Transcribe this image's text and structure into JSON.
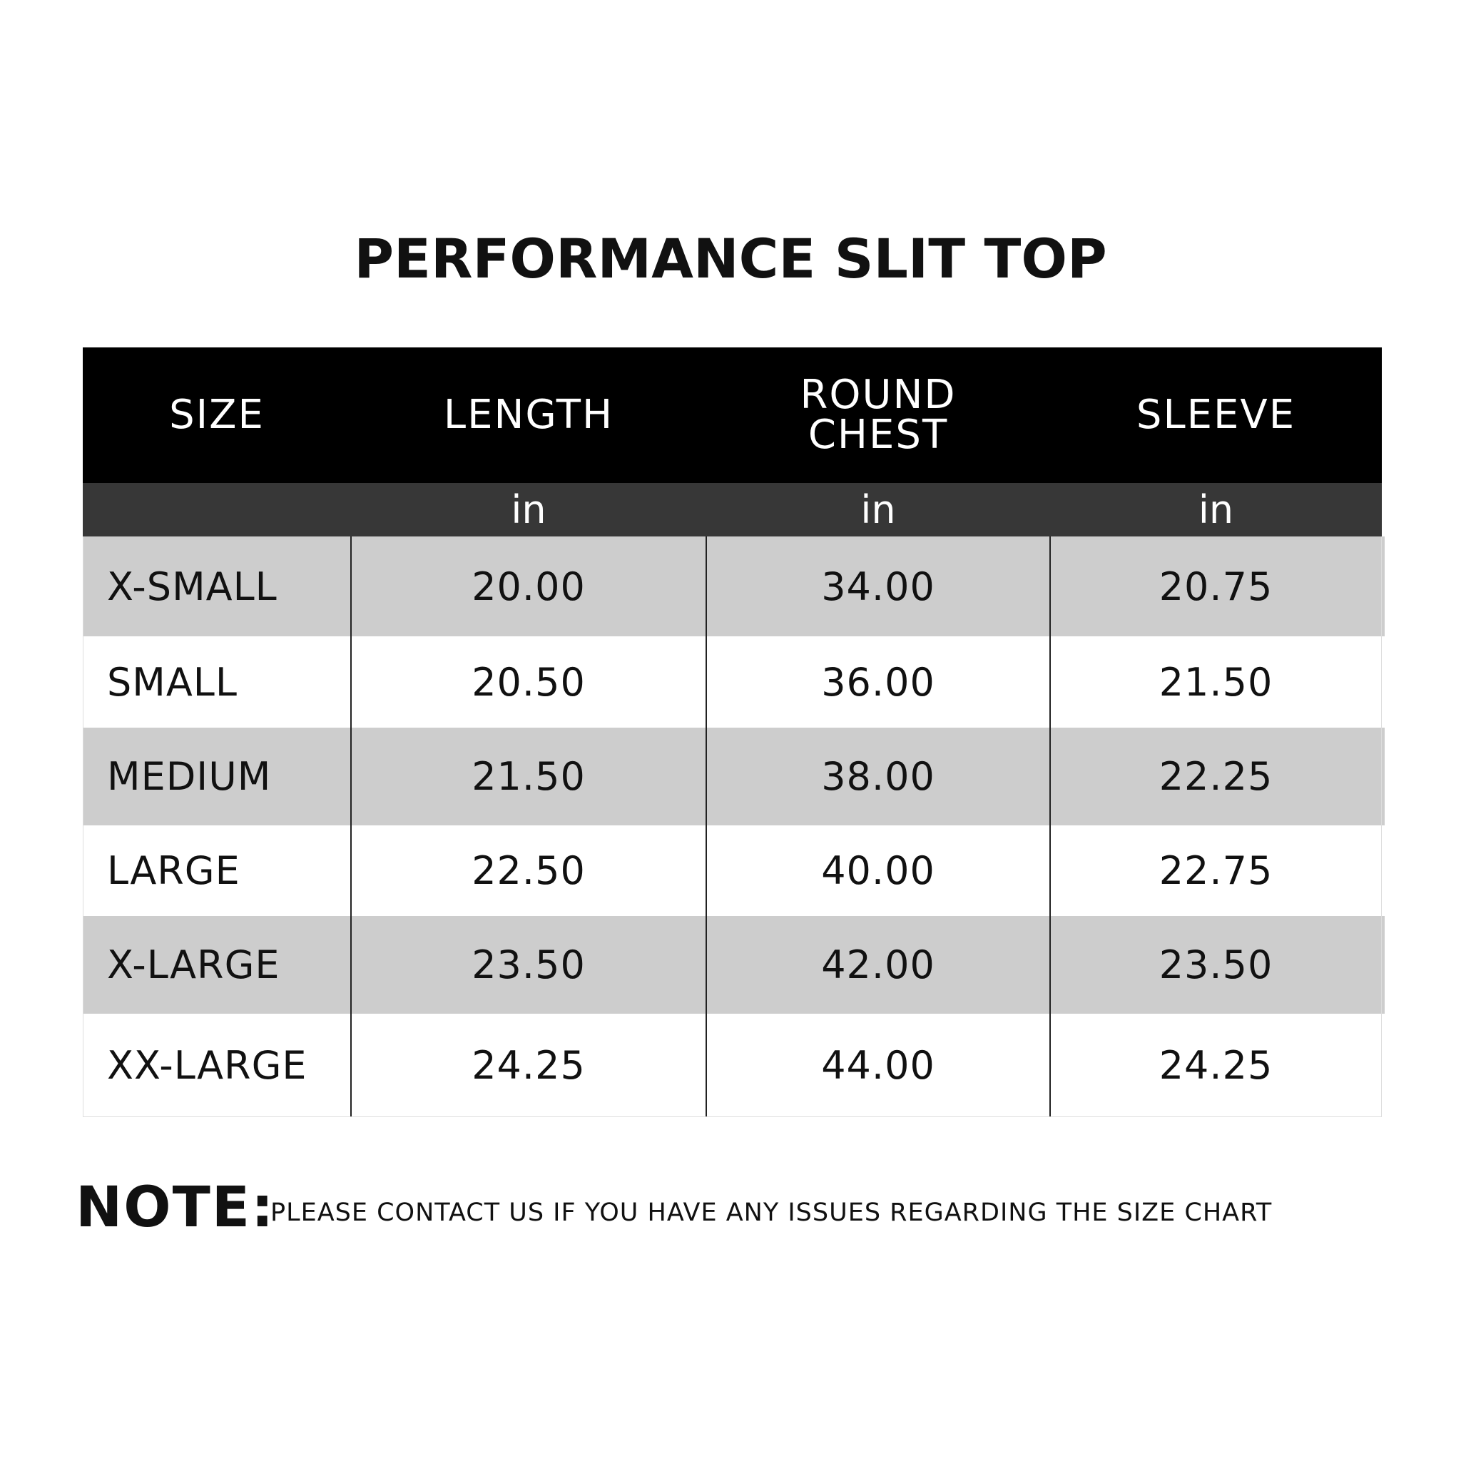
{
  "title": "PERFORMANCE SLIT TOP",
  "table": {
    "headers": [
      "SIZE",
      "LENGTH",
      "ROUND CHEST",
      "SLEEVE"
    ],
    "units": [
      "in",
      "in",
      "in"
    ],
    "rows": [
      [
        "X-SMALL",
        "20.00",
        "34.00",
        "20.75"
      ],
      [
        "SMALL",
        "20.50",
        "36.00",
        "21.50"
      ],
      [
        "MEDIUM",
        "21.50",
        "38.00",
        "22.25"
      ],
      [
        "LARGE",
        "22.50",
        "40.00",
        "22.75"
      ],
      [
        "X-LARGE",
        "23.50",
        "42.00",
        "23.50"
      ],
      [
        "XX-LARGE",
        "24.25",
        "44.00",
        "24.25"
      ]
    ]
  },
  "note": {
    "label": "NOTE:",
    "text": "PLEASE CONTACT US IF YOU HAVE ANY ISSUES REGARDING THE SIZE CHART"
  }
}
